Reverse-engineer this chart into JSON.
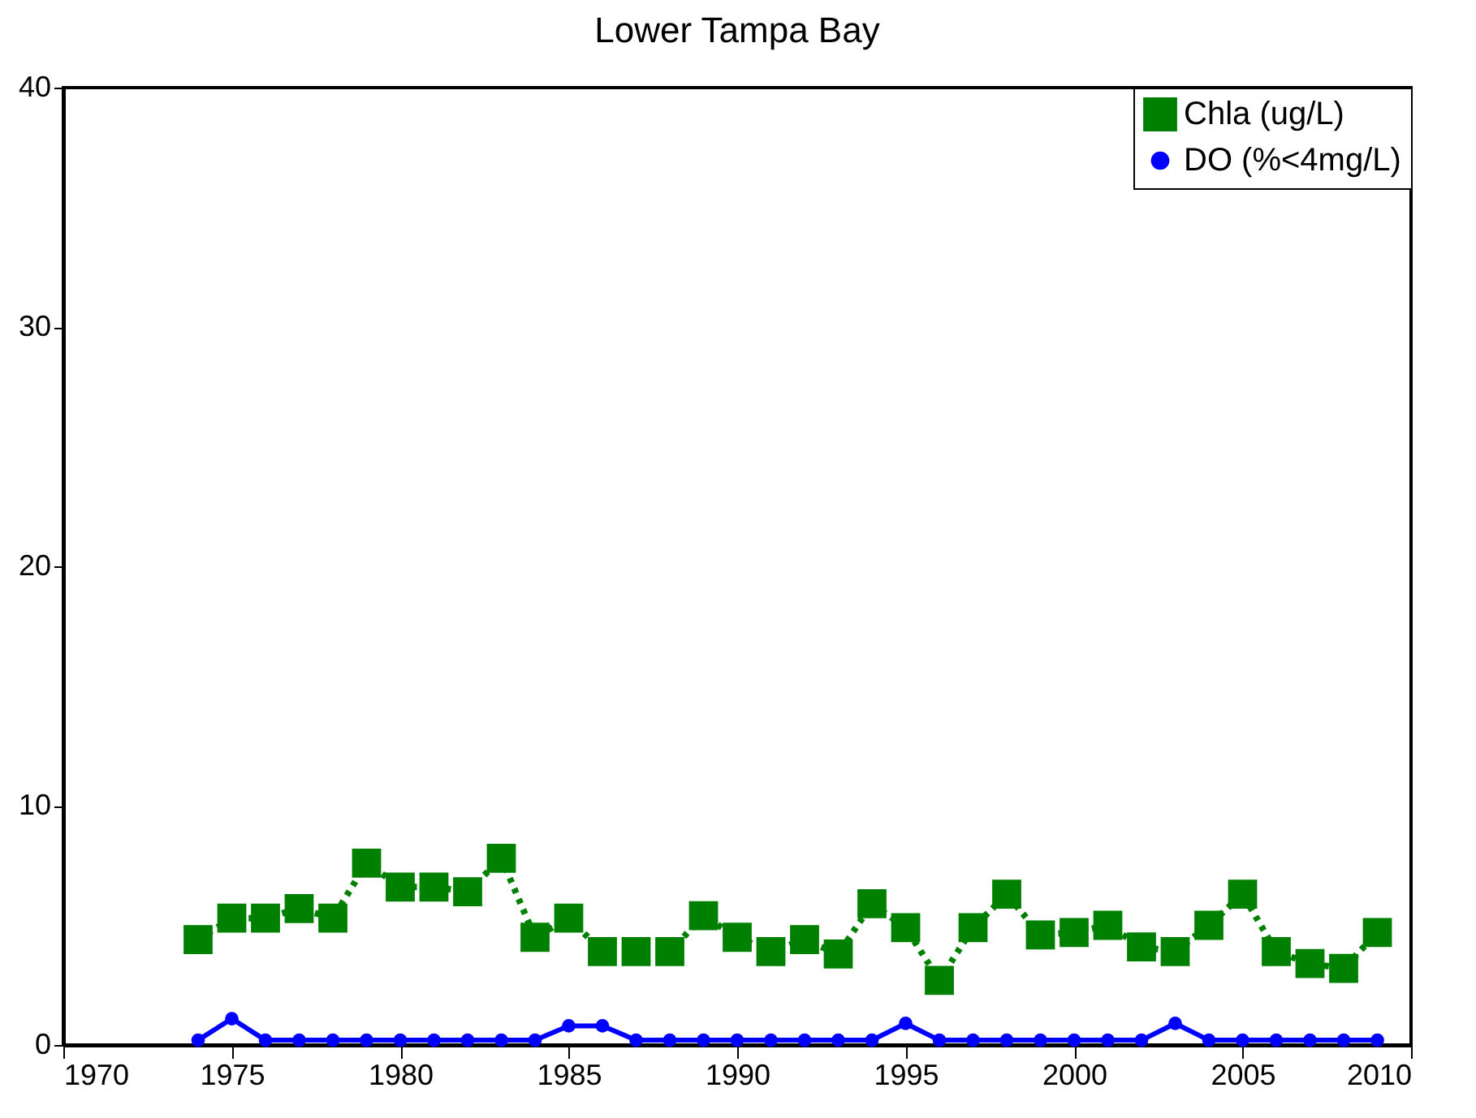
{
  "chart_data": {
    "type": "line",
    "title": "Lower Tampa Bay",
    "x": [
      1974,
      1975,
      1976,
      1977,
      1978,
      1979,
      1980,
      1981,
      1982,
      1983,
      1984,
      1985,
      1986,
      1987,
      1988,
      1989,
      1990,
      1991,
      1992,
      1993,
      1994,
      1995,
      1996,
      1997,
      1998,
      1999,
      2000,
      2001,
      2002,
      2003,
      2004,
      2005,
      2006,
      2007,
      2008,
      2009
    ],
    "series": [
      {
        "name": "Chla (ug/L)",
        "color": "#008000",
        "marker": "square",
        "line_style": "dotted",
        "values": [
          4.4,
          5.3,
          5.3,
          5.7,
          5.3,
          7.6,
          6.6,
          6.6,
          6.4,
          7.8,
          4.5,
          5.3,
          3.9,
          3.9,
          3.9,
          5.4,
          4.5,
          3.9,
          4.4,
          3.8,
          5.9,
          4.9,
          2.7,
          4.9,
          6.3,
          4.6,
          4.7,
          5.0,
          4.1,
          3.9,
          5.0,
          6.3,
          3.9,
          3.4,
          3.2,
          4.7
        ]
      },
      {
        "name": "DO (%<4mg/L)",
        "color": "#0000ff",
        "marker": "circle",
        "line_style": "solid",
        "values": [
          0.2,
          1.1,
          0.2,
          0.2,
          0.2,
          0.2,
          0.2,
          0.2,
          0.2,
          0.2,
          0.2,
          0.8,
          0.8,
          0.2,
          0.2,
          0.2,
          0.2,
          0.2,
          0.2,
          0.2,
          0.2,
          0.9,
          0.2,
          0.2,
          0.2,
          0.2,
          0.2,
          0.2,
          0.2,
          0.9,
          0.2,
          0.2,
          0.2,
          0.2,
          0.2,
          0.2
        ]
      }
    ],
    "xlim": [
      1970,
      2010
    ],
    "xticks": [
      1970,
      1975,
      1980,
      1985,
      1990,
      1995,
      2000,
      2005,
      2010
    ],
    "ylim": [
      0,
      40
    ],
    "yticks": [
      0,
      10,
      20,
      30,
      40
    ],
    "grid": false,
    "legend": "top right"
  }
}
